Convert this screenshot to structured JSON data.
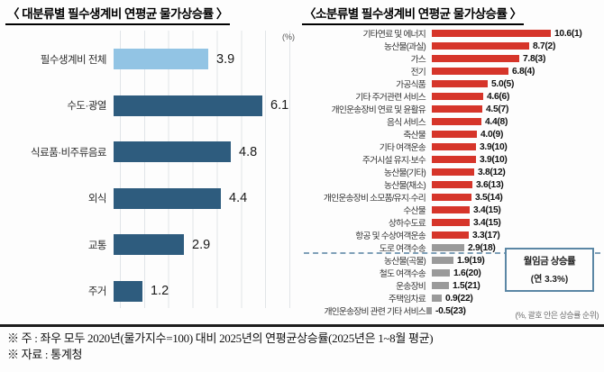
{
  "colors": {
    "light_blue": "#92c4e4",
    "navy": "#2e5c7e",
    "red": "#d6352a",
    "gray": "#9a9a9a",
    "threshold_line": "#7fa0b8",
    "callout_border": "#5b87a5",
    "grid": "#e1e5e8"
  },
  "chart_data": [
    {
      "type": "bar",
      "orientation": "horizontal",
      "title": "〈 대분류별 필수생계비 연평균 물가상승률 〉",
      "unit_label": "(%)",
      "xlim": [
        0,
        7
      ],
      "grid": true,
      "categories": [
        "필수생계비 전체",
        "수도·광열",
        "식료품·비주류음료",
        "외식",
        "교통",
        "주거"
      ],
      "values": [
        3.9,
        6.1,
        4.8,
        4.4,
        2.9,
        1.2
      ],
      "value_labels": [
        "3.9",
        "6.1",
        "4.8",
        "4.4",
        "2.9",
        "1.2"
      ],
      "bar_colors": [
        "#92c4e4",
        "#2e5c7e",
        "#2e5c7e",
        "#2e5c7e",
        "#2e5c7e",
        "#2e5c7e"
      ]
    },
    {
      "type": "bar",
      "orientation": "horizontal",
      "title": "〈소분류별 필수생계비 연평균 물가상승률 〉",
      "xlim": [
        -0.5,
        10.6
      ],
      "grid": false,
      "categories": [
        "기타연료 및 에너지",
        "농산물(과실)",
        "가스",
        "전기",
        "가공식품",
        "기타 주거관련 서비스",
        "개인운송장비 연료 및 윤활유",
        "음식 서비스",
        "축산물",
        "기타 여객운송",
        "주거시설 유지·보수",
        "농산물(기타)",
        "농산물(채소)",
        "개인운송장비 소모품/유지·수리",
        "수산물",
        "상하수도료",
        "항공 및 수상여객운송",
        "도로 여객수송",
        "농산물(곡물)",
        "철도 여객수송",
        "운송장비",
        "주택임차료",
        "개인운송장비 관련 기타 서비스"
      ],
      "values": [
        10.6,
        8.7,
        7.8,
        6.8,
        5.0,
        4.6,
        4.5,
        4.4,
        4.0,
        3.9,
        3.9,
        3.8,
        3.6,
        3.5,
        3.4,
        3.4,
        3.3,
        2.9,
        1.9,
        1.6,
        1.5,
        0.9,
        -0.5
      ],
      "value_labels": [
        "10.6(1)",
        "8.7(2)",
        "7.8(3)",
        "6.8(4)",
        "5.0(5)",
        "4.6(6)",
        "4.5(7)",
        "4.4(8)",
        "4.0(9)",
        "3.9(10)",
        "3.9(10)",
        "3.8(12)",
        "3.6(13)",
        "3.5(14)",
        "3.4(15)",
        "3.4(15)",
        "3.3(17)",
        "2.9(18)",
        "1.9(19)",
        "1.6(20)",
        "1.5(21)",
        "0.9(22)",
        "-0.5(23)"
      ],
      "bar_colors": [
        "#d6352a",
        "#d6352a",
        "#d6352a",
        "#d6352a",
        "#d6352a",
        "#d6352a",
        "#d6352a",
        "#d6352a",
        "#d6352a",
        "#d6352a",
        "#d6352a",
        "#d6352a",
        "#d6352a",
        "#d6352a",
        "#d6352a",
        "#d6352a",
        "#d6352a",
        "#9a9a9a",
        "#9a9a9a",
        "#9a9a9a",
        "#9a9a9a",
        "#9a9a9a",
        "#9a9a9a"
      ],
      "threshold": {
        "after_index": 16,
        "value": 3.3,
        "label_line1": "월임금 상승률",
        "label_line2": "(연 3.3%)"
      },
      "note": "(%, 괄호 안은 상승률 순위)"
    }
  ],
  "footer": {
    "note1": "※ 주 : 좌우 모두 2020년(물가지수=100) 대비 2025년의 연평균상승률(2025년은 1~8월 평균)",
    "note2": "※ 자료 : 통계청"
  }
}
